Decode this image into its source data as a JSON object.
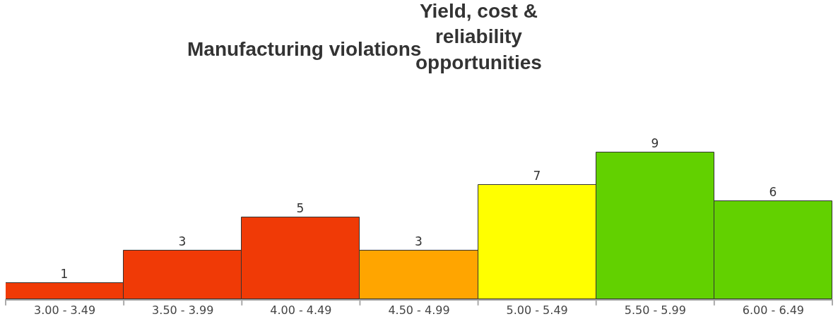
{
  "chart_data": {
    "type": "bar",
    "categories": [
      "3.00 - 3.49",
      "3.50 - 3.99",
      "4.00 - 4.49",
      "4.50 - 4.99",
      "5.00 - 5.49",
      "5.50 - 5.99",
      "6.00 - 6.49"
    ],
    "values": [
      1,
      3,
      5,
      3,
      7,
      9,
      6
    ],
    "colors": [
      "#f03a06",
      "#f03a06",
      "#f03a06",
      "#ffa500",
      "#ffff00",
      "#62d100",
      "#62d100"
    ],
    "data_labels": true,
    "tick_labels": "x",
    "legend": false,
    "annotations": [
      "Manufacturing violations",
      "Yield, cost &\nreliability\nopportunities"
    ]
  }
}
